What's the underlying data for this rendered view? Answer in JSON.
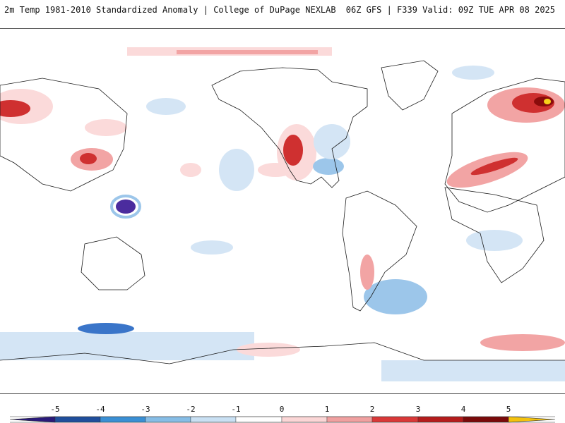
{
  "header": {
    "left_title": "2m Temp 1981-2010 Standardized Anomaly | College of DuPage NEXLAB",
    "right_title": "06Z GFS | F339 Valid: 09Z TUE APR 08 2025"
  },
  "legend": {
    "ticks": [
      "-5",
      "-4",
      "-3",
      "-2",
      "-1",
      "0",
      "1",
      "2",
      "3",
      "4",
      "5"
    ],
    "colors": [
      "#2a1a7a",
      "#1f4e9c",
      "#3a8fd4",
      "#86bde6",
      "#c9e0f3",
      "#ffffff",
      "#fbd6d6",
      "#f0a0a0",
      "#d93838",
      "#b51c1c",
      "#7a0a0a",
      "#f4c20d"
    ]
  },
  "palette": {
    "cold_light": "#d4e5f5",
    "cold_mid": "#9cc6ea",
    "cold_dark": "#3a75c9",
    "cold_extreme": "#4b2c9e",
    "warm_light": "#fbdada",
    "warm_mid": "#f2a4a4",
    "warm_dark": "#cf3030",
    "warm_extreme": "#8a0c0c",
    "hot_peak": "#f7d21a",
    "coast": "#1a1a1a"
  }
}
